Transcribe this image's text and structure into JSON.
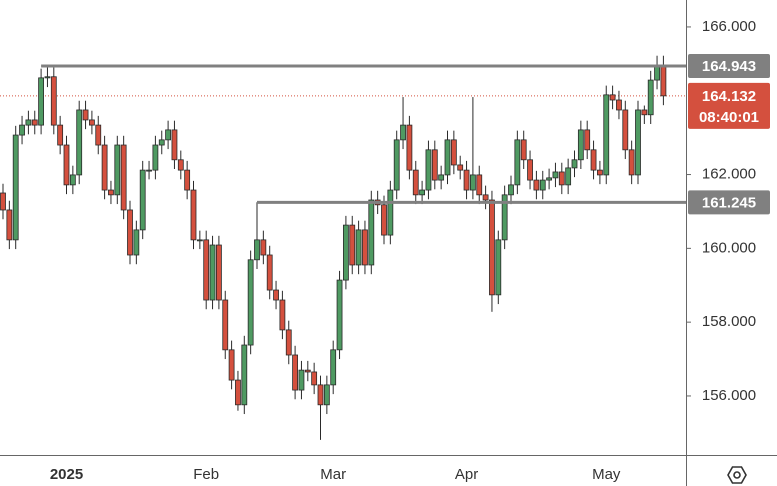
{
  "chart_data": {
    "type": "candlestick",
    "categories": [
      null,
      null,
      null,
      null,
      null,
      null,
      null,
      null,
      null,
      null,
      "2025",
      null,
      null,
      null,
      null,
      null,
      null,
      null,
      null,
      null,
      null,
      null,
      null,
      null,
      null,
      null,
      null,
      null,
      null,
      null,
      null,
      null,
      "Feb",
      null,
      null,
      null,
      null,
      null,
      null,
      null,
      null,
      null,
      null,
      null,
      null,
      null,
      null,
      null,
      null,
      null,
      null,
      null,
      "Mar",
      null,
      null,
      null,
      null,
      null,
      null,
      null,
      null,
      null,
      null,
      null,
      null,
      null,
      null,
      null,
      null,
      null,
      null,
      null,
      null,
      "Apr",
      null,
      null,
      null,
      null,
      null,
      null,
      null,
      null,
      null,
      null,
      null,
      null,
      null,
      null,
      null,
      null,
      null,
      null,
      null,
      null,
      null,
      "May",
      null,
      null,
      null,
      null,
      null,
      null,
      null,
      null,
      null
    ],
    "open": [
      161.5,
      161.04,
      160.23,
      163.07,
      163.34,
      163.48,
      163.34,
      164.62,
      164.65,
      163.34,
      162.8,
      161.72,
      161.99,
      163.75,
      163.48,
      163.34,
      162.8,
      161.58,
      161.45,
      162.8,
      161.04,
      159.82,
      160.5,
      162.12,
      162.12,
      162.8,
      162.94,
      163.21,
      162.4,
      162.12,
      161.58,
      160.23,
      160.23,
      158.6,
      160.09,
      158.6,
      157.25,
      156.43,
      155.76,
      157.38,
      159.69,
      160.23,
      159.82,
      158.87,
      158.6,
      157.79,
      157.11,
      156.16,
      156.7,
      156.65,
      156.3,
      155.76,
      156.3,
      157.25,
      159.14,
      160.63,
      159.55,
      160.5,
      159.55,
      161.31,
      161.18,
      160.36,
      161.58,
      162.94,
      163.34,
      162.12,
      161.45,
      161.58,
      162.67,
      161.85,
      161.99,
      162.94,
      162.26,
      162.12,
      161.58,
      161.99,
      161.45,
      161.31,
      158.74,
      160.23,
      161.45,
      161.72,
      162.94,
      162.4,
      161.85,
      161.58,
      161.85,
      161.91,
      162.07,
      161.72,
      162.18,
      162.4,
      163.21,
      162.67,
      162.12,
      161.99,
      164.16,
      164.02,
      163.75,
      162.67,
      161.99,
      163.75,
      163.62,
      164.56,
      164.97
    ],
    "high": [
      161.75,
      161.29,
      163.32,
      163.59,
      163.73,
      163.73,
      164.87,
      164.9,
      164.9,
      163.59,
      163.05,
      162.24,
      164.0,
      164.0,
      163.73,
      163.59,
      163.05,
      161.83,
      163.05,
      163.05,
      161.29,
      160.75,
      162.37,
      162.37,
      163.05,
      163.19,
      163.46,
      163.46,
      162.65,
      162.37,
      161.83,
      160.48,
      160.48,
      160.34,
      160.34,
      158.85,
      157.5,
      156.68,
      157.63,
      159.94,
      161.25,
      160.48,
      160.07,
      159.12,
      158.85,
      158.04,
      157.36,
      156.95,
      156.95,
      156.9,
      156.55,
      156.55,
      157.5,
      159.39,
      160.88,
      160.88,
      160.75,
      160.75,
      161.56,
      161.56,
      161.43,
      161.83,
      163.19,
      164.1,
      163.59,
      162.37,
      161.83,
      162.92,
      162.92,
      162.24,
      163.19,
      163.19,
      162.51,
      162.37,
      164.1,
      162.24,
      161.7,
      161.56,
      160.48,
      161.7,
      161.97,
      163.19,
      163.19,
      162.65,
      162.1,
      162.1,
      162.16,
      162.32,
      162.32,
      162.43,
      162.65,
      163.46,
      163.46,
      162.92,
      162.37,
      164.41,
      164.41,
      164.27,
      164.0,
      162.92,
      164.0,
      163.87,
      164.81,
      165.22,
      165.22
    ],
    "low": [
      160.79,
      159.98,
      159.98,
      162.82,
      163.09,
      163.09,
      163.09,
      164.37,
      163.09,
      162.55,
      161.47,
      161.47,
      161.74,
      163.23,
      163.09,
      162.55,
      161.33,
      161.2,
      161.2,
      160.79,
      159.57,
      159.57,
      160.25,
      161.87,
      161.87,
      162.55,
      162.69,
      162.15,
      161.87,
      161.33,
      159.98,
      159.98,
      158.35,
      158.35,
      158.35,
      157.0,
      156.18,
      155.6,
      155.51,
      157.13,
      159.44,
      159.57,
      158.62,
      158.35,
      157.54,
      156.86,
      155.91,
      155.91,
      156.4,
      156.05,
      154.81,
      155.51,
      156.05,
      157.0,
      158.89,
      159.3,
      159.3,
      159.3,
      159.3,
      160.93,
      160.11,
      160.11,
      161.33,
      162.69,
      161.87,
      161.2,
      161.2,
      161.33,
      161.6,
      161.6,
      161.74,
      162.01,
      161.87,
      161.33,
      161.33,
      161.2,
      161.06,
      158.28,
      158.49,
      159.98,
      161.2,
      161.47,
      162.15,
      161.6,
      161.33,
      161.33,
      161.6,
      161.66,
      161.47,
      161.47,
      161.93,
      162.15,
      162.42,
      161.87,
      161.74,
      161.74,
      163.77,
      163.5,
      162.42,
      161.74,
      161.74,
      163.37,
      163.37,
      164.31,
      163.88
    ],
    "close": [
      161.04,
      160.23,
      163.07,
      163.34,
      163.48,
      163.34,
      164.62,
      164.65,
      163.34,
      162.8,
      161.72,
      161.99,
      163.75,
      163.48,
      163.34,
      162.8,
      161.58,
      161.45,
      162.8,
      161.04,
      159.82,
      160.5,
      162.12,
      162.12,
      162.8,
      162.94,
      163.21,
      162.4,
      162.12,
      161.58,
      160.23,
      160.23,
      158.6,
      160.09,
      158.6,
      157.25,
      156.43,
      155.76,
      157.38,
      159.69,
      160.23,
      159.82,
      158.87,
      158.6,
      157.79,
      157.11,
      156.16,
      156.7,
      156.65,
      156.3,
      155.76,
      156.3,
      157.25,
      159.14,
      160.63,
      159.55,
      160.5,
      159.55,
      161.31,
      161.18,
      160.36,
      161.58,
      162.94,
      163.34,
      162.12,
      161.45,
      161.58,
      162.67,
      161.85,
      161.99,
      162.94,
      162.26,
      162.12,
      161.58,
      161.99,
      161.45,
      161.31,
      158.74,
      160.23,
      161.45,
      161.72,
      162.94,
      162.4,
      161.85,
      161.58,
      161.85,
      161.91,
      162.07,
      161.72,
      162.18,
      162.4,
      163.21,
      162.67,
      162.12,
      161.99,
      164.16,
      164.02,
      163.75,
      162.67,
      161.99,
      163.75,
      163.62,
      164.56,
      164.97,
      164.132
    ],
    "up_color": "#4f9a62",
    "down_color": "#d4503e",
    "levels": [
      164.943,
      161.245
    ],
    "countdown": "08:40:01",
    "ylim": [
      154.4,
      166.73
    ],
    "yticks": [
      {
        "value": 156,
        "label": "156.000"
      },
      {
        "value": 158,
        "label": "158.000"
      },
      {
        "value": 160,
        "label": "160.000"
      },
      {
        "value": 162,
        "label": "162.000"
      },
      {
        "value": 166,
        "label": "166.000"
      }
    ]
  }
}
